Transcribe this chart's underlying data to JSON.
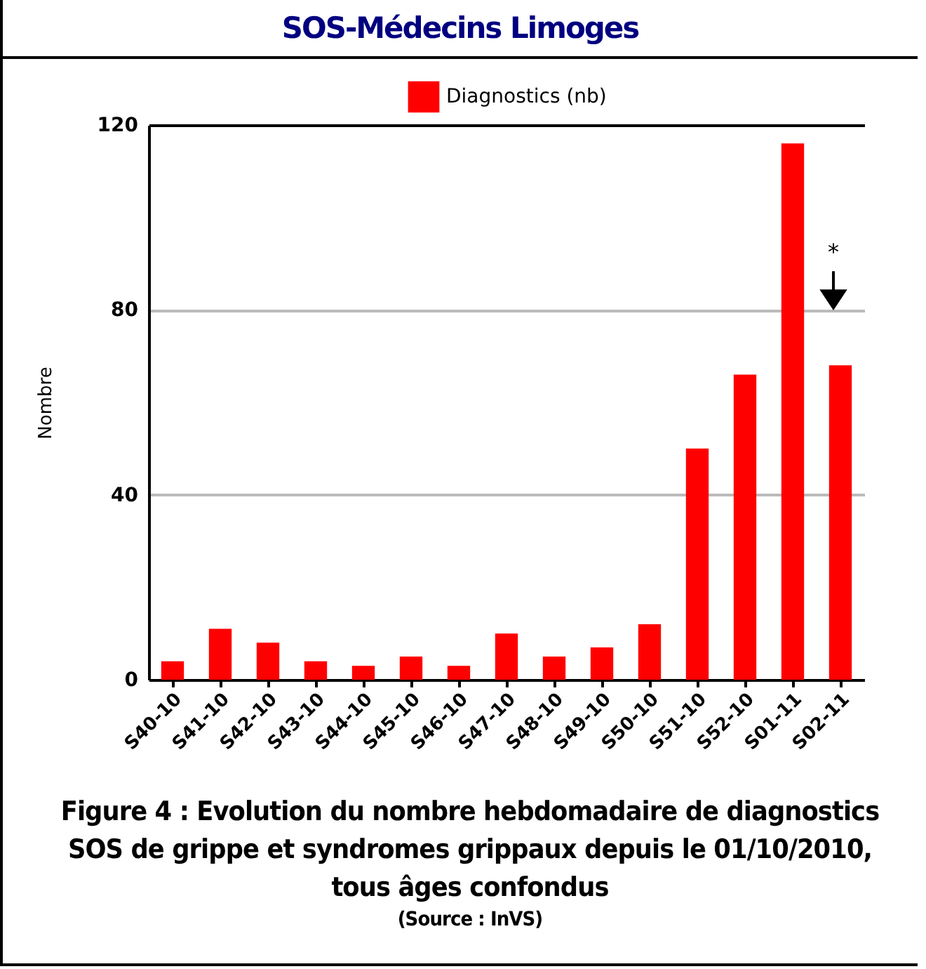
{
  "chart_data": {
    "type": "bar",
    "title": "SOS-Médecins Limoges",
    "ylabel": "Nombre",
    "categories": [
      "S40-10",
      "S41-10",
      "S42-10",
      "S43-10",
      "S44-10",
      "S45-10",
      "S46-10",
      "S47-10",
      "S48-10",
      "S49-10",
      "S50-10",
      "S51-10",
      "S52-10",
      "S01-11",
      "S02-11"
    ],
    "series": [
      {
        "name": "Diagnostics (nb)",
        "color": "#ff0000",
        "values": [
          4,
          11,
          8,
          4,
          3,
          5,
          3,
          10,
          5,
          7,
          12,
          50,
          66,
          116,
          68
        ]
      }
    ],
    "ylim": [
      0,
      120
    ],
    "yticks": [
      0,
      40,
      80,
      120
    ],
    "grid": "y",
    "legend": "top",
    "annotations": [
      "*",
      "Figure 4 : Evolution du nombre hebdomadaire de diagnostics SOS de grippe et syndromes grippaux depuis le 01/10/2010, tous âges confondus",
      "(Source : InVS)"
    ]
  }
}
